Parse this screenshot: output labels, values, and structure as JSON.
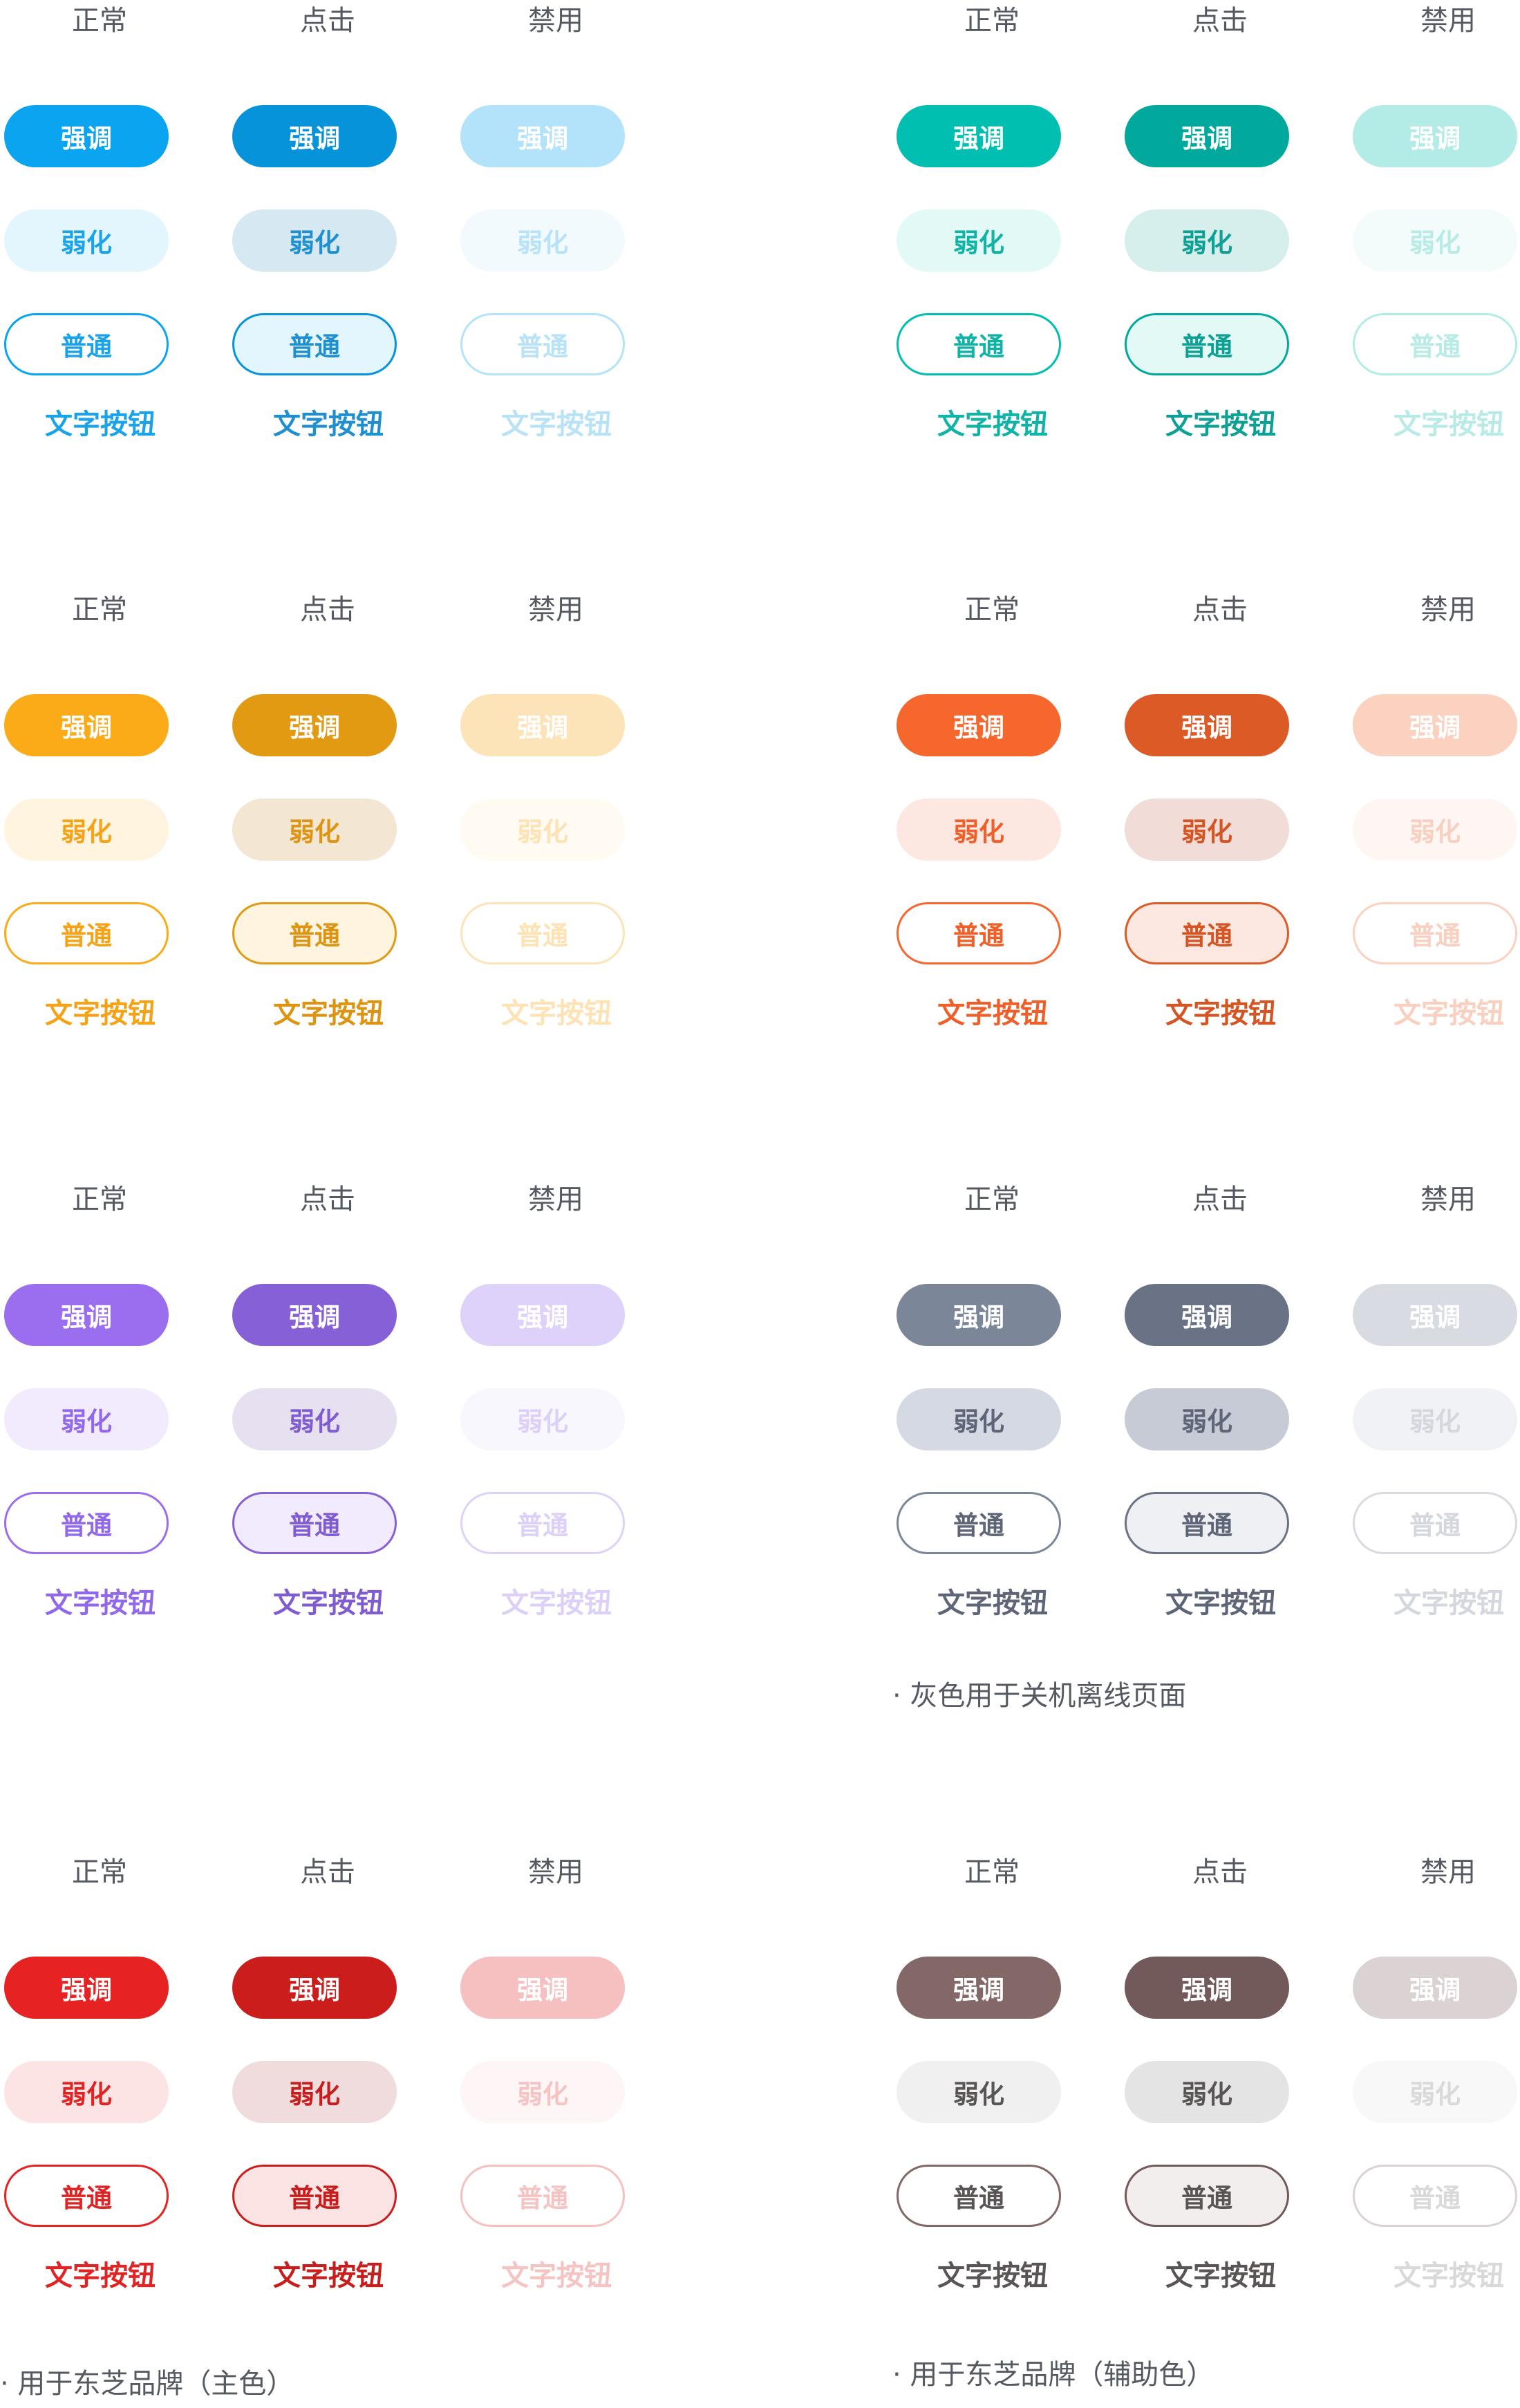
{
  "groups": [
    {
      "headers": [
        "正常",
        "点击",
        "禁用"
      ],
      "emphasis_label": "强调",
      "weak_label": "弱化",
      "normal_label": "普通",
      "text_label": "文字按钮",
      "colors": {
        "emphasis": [
          {
            "bg": "#0aa4f0",
            "fg": "#ffffff"
          },
          {
            "bg": "#0793d9",
            "fg": "#ffffff"
          },
          {
            "bg": "#b3e3fa",
            "fg": "#ffffff"
          }
        ],
        "weak": [
          {
            "bg": "#e3f5fd",
            "fg": "#1aa3e8"
          },
          {
            "bg": "#d6e8f1",
            "fg": "#1f8fd0"
          },
          {
            "bg": "#f3fafe",
            "fg": "#b8e2f7"
          }
        ],
        "normal": [
          {
            "bg": "#ffffff",
            "border": "#0aa4f0",
            "fg": "#1aa3e8"
          },
          {
            "bg": "#e3f5fd",
            "border": "#0793d9",
            "fg": "#1f8fd0"
          },
          {
            "bg": "#ffffff",
            "border": "#b3e3fa",
            "fg": "#b8e2f7"
          }
        ],
        "text": [
          "#1aa3e8",
          "#1f8fd0",
          "#b8e2f7"
        ]
      }
    },
    {
      "headers": [
        "正常",
        "点击",
        "禁用"
      ],
      "emphasis_label": "强调",
      "weak_label": "弱化",
      "normal_label": "普通",
      "text_label": "文字按钮",
      "colors": {
        "emphasis": [
          {
            "bg": "#00bfb0",
            "fg": "#ffffff"
          },
          {
            "bg": "#00a99c",
            "fg": "#ffffff"
          },
          {
            "bg": "#b3ece7",
            "fg": "#ffffff"
          }
        ],
        "weak": [
          {
            "bg": "#e3f9f6",
            "fg": "#10b3a6"
          },
          {
            "bg": "#d7efec",
            "fg": "#0ea095"
          },
          {
            "bg": "#f3fcfb",
            "fg": "#b8ebe6"
          }
        ],
        "normal": [
          {
            "bg": "#ffffff",
            "border": "#00bfb0",
            "fg": "#10b3a6"
          },
          {
            "bg": "#e3f9f6",
            "border": "#00a99c",
            "fg": "#0ea095"
          },
          {
            "bg": "#ffffff",
            "border": "#b3ece7",
            "fg": "#b8ebe6"
          }
        ],
        "text": [
          "#10b3a6",
          "#0ea095",
          "#b8ebe6"
        ]
      }
    },
    {
      "headers": [
        "正常",
        "点击",
        "禁用"
      ],
      "emphasis_label": "强调",
      "weak_label": "弱化",
      "normal_label": "普通",
      "text_label": "文字按钮",
      "colors": {
        "emphasis": [
          {
            "bg": "#fbab17",
            "fg": "#ffffff"
          },
          {
            "bg": "#e29a12",
            "fg": "#ffffff"
          },
          {
            "bg": "#fde4b8",
            "fg": "#ffffff"
          }
        ],
        "weak": [
          {
            "bg": "#fff4e0",
            "fg": "#f5a217"
          },
          {
            "bg": "#f3e6d2",
            "fg": "#dd9413"
          },
          {
            "bg": "#fffaf2",
            "fg": "#fde2b3"
          }
        ],
        "normal": [
          {
            "bg": "#ffffff",
            "border": "#fbab17",
            "fg": "#f5a217"
          },
          {
            "bg": "#fff4e0",
            "border": "#e29a12",
            "fg": "#dd9413"
          },
          {
            "bg": "#ffffff",
            "border": "#fde4b8",
            "fg": "#fde2b3"
          }
        ],
        "text": [
          "#f5a217",
          "#dd9413",
          "#fde2b3"
        ]
      }
    },
    {
      "headers": [
        "正常",
        "点击",
        "禁用"
      ],
      "emphasis_label": "强调",
      "weak_label": "弱化",
      "normal_label": "普通",
      "text_label": "文字按钮",
      "colors": {
        "emphasis": [
          {
            "bg": "#f5672d",
            "fg": "#ffffff"
          },
          {
            "bg": "#dc5a25",
            "fg": "#ffffff"
          },
          {
            "bg": "#fbd1c0",
            "fg": "#ffffff"
          }
        ],
        "weak": [
          {
            "bg": "#fde8e1",
            "fg": "#ee5f2a"
          },
          {
            "bg": "#f2dcd8",
            "fg": "#d55424"
          },
          {
            "bg": "#fef6f3",
            "fg": "#f9cfc0"
          }
        ],
        "normal": [
          {
            "bg": "#ffffff",
            "border": "#f5672d",
            "fg": "#ee5f2a"
          },
          {
            "bg": "#fde8e1",
            "border": "#dc5a25",
            "fg": "#d55424"
          },
          {
            "bg": "#ffffff",
            "border": "#fbd1c0",
            "fg": "#f9cfc0"
          }
        ],
        "text": [
          "#ee5f2a",
          "#d55424",
          "#f9cfc0"
        ]
      }
    },
    {
      "headers": [
        "正常",
        "点击",
        "禁用"
      ],
      "emphasis_label": "强调",
      "weak_label": "弱化",
      "normal_label": "普通",
      "text_label": "文字按钮",
      "colors": {
        "emphasis": [
          {
            "bg": "#9b6ef0",
            "fg": "#ffffff"
          },
          {
            "bg": "#8660d6",
            "fg": "#ffffff"
          },
          {
            "bg": "#dfd2fa",
            "fg": "#ffffff"
          }
        ],
        "weak": [
          {
            "bg": "#f1ebfd",
            "fg": "#9268ea"
          },
          {
            "bg": "#e6e0f0",
            "fg": "#7f5cd0"
          },
          {
            "bg": "#f9f7fe",
            "fg": "#dcd0f8"
          }
        ],
        "normal": [
          {
            "bg": "#ffffff",
            "border": "#9b6ef0",
            "fg": "#9268ea"
          },
          {
            "bg": "#f1ebfd",
            "border": "#8660d6",
            "fg": "#7f5cd0"
          },
          {
            "bg": "#ffffff",
            "border": "#dfd2fa",
            "fg": "#dcd0f8"
          }
        ],
        "text": [
          "#9268ea",
          "#7f5cd0",
          "#dcd0f8"
        ]
      }
    },
    {
      "headers": [
        "正常",
        "点击",
        "禁用"
      ],
      "emphasis_label": "强调",
      "weak_label": "弱化",
      "normal_label": "普通",
      "text_label": "文字按钮",
      "colors": {
        "emphasis": [
          {
            "bg": "#7c8699",
            "fg": "#ffffff"
          },
          {
            "bg": "#6a7386",
            "fg": "#ffffff"
          },
          {
            "bg": "#d8dbe1",
            "fg": "#ffffff"
          }
        ],
        "weak": [
          {
            "bg": "#d4d9e4",
            "fg": "#5d6577"
          },
          {
            "bg": "#c6cbd6",
            "fg": "#5d6577"
          },
          {
            "bg": "#f1f2f5",
            "fg": "#d4d7de"
          }
        ],
        "normal": [
          {
            "bg": "#ffffff",
            "border": "#7c8699",
            "fg": "#5d6577"
          },
          {
            "bg": "#eef0f3",
            "border": "#6a7386",
            "fg": "#5d6577"
          },
          {
            "bg": "#ffffff",
            "border": "#d8dbe1",
            "fg": "#d4d7de"
          }
        ],
        "text": [
          "#5d6577",
          "#5d6577",
          "#d4d7de"
        ]
      },
      "note": "· 灰色用于关机离线页面"
    },
    {
      "headers": [
        "正常",
        "点击",
        "禁用"
      ],
      "emphasis_label": "强调",
      "weak_label": "弱化",
      "normal_label": "普通",
      "text_label": "文字按钮",
      "colors": {
        "emphasis": [
          {
            "bg": "#e72222",
            "fg": "#ffffff"
          },
          {
            "bg": "#cc1d1d",
            "fg": "#ffffff"
          },
          {
            "bg": "#f7c0c0",
            "fg": "#ffffff"
          }
        ],
        "weak": [
          {
            "bg": "#fde4e4",
            "fg": "#e02323"
          },
          {
            "bg": "#f0dcdc",
            "fg": "#c71d1d"
          },
          {
            "bg": "#fef6f6",
            "fg": "#f6c3c3"
          }
        ],
        "normal": [
          {
            "bg": "#ffffff",
            "border": "#e72222",
            "fg": "#e02323"
          },
          {
            "bg": "#fde4e4",
            "border": "#cc1d1d",
            "fg": "#c71d1d"
          },
          {
            "bg": "#ffffff",
            "border": "#f7c0c0",
            "fg": "#f6c3c3"
          }
        ],
        "text": [
          "#e02323",
          "#c71d1d",
          "#f6c3c3"
        ]
      },
      "note": "· 用于东芝品牌（主色）"
    },
    {
      "headers": [
        "正常",
        "点击",
        "禁用"
      ],
      "emphasis_label": "强调",
      "weak_label": "弱化",
      "normal_label": "普通",
      "text_label": "文字按钮",
      "colors": {
        "emphasis": [
          {
            "bg": "#846868",
            "fg": "#ffffff"
          },
          {
            "bg": "#735a5a",
            "fg": "#ffffff"
          },
          {
            "bg": "#dbd3d3",
            "fg": "#ffffff"
          }
        ],
        "weak": [
          {
            "bg": "#f0f0f0",
            "fg": "#5a5555"
          },
          {
            "bg": "#e4e4e4",
            "fg": "#5a5555"
          },
          {
            "bg": "#f8f8f8",
            "fg": "#d9d9d9"
          }
        ],
        "normal": [
          {
            "bg": "#ffffff",
            "border": "#846868",
            "fg": "#5a5555"
          },
          {
            "bg": "#f3eeee",
            "border": "#735a5a",
            "fg": "#5a5555"
          },
          {
            "bg": "#ffffff",
            "border": "#dbd3d3",
            "fg": "#d9d9d9"
          }
        ],
        "text": [
          "#5a5555",
          "#5a5555",
          "#d9d9d9"
        ]
      },
      "note": "· 用于东芝品牌（辅助色）"
    }
  ]
}
